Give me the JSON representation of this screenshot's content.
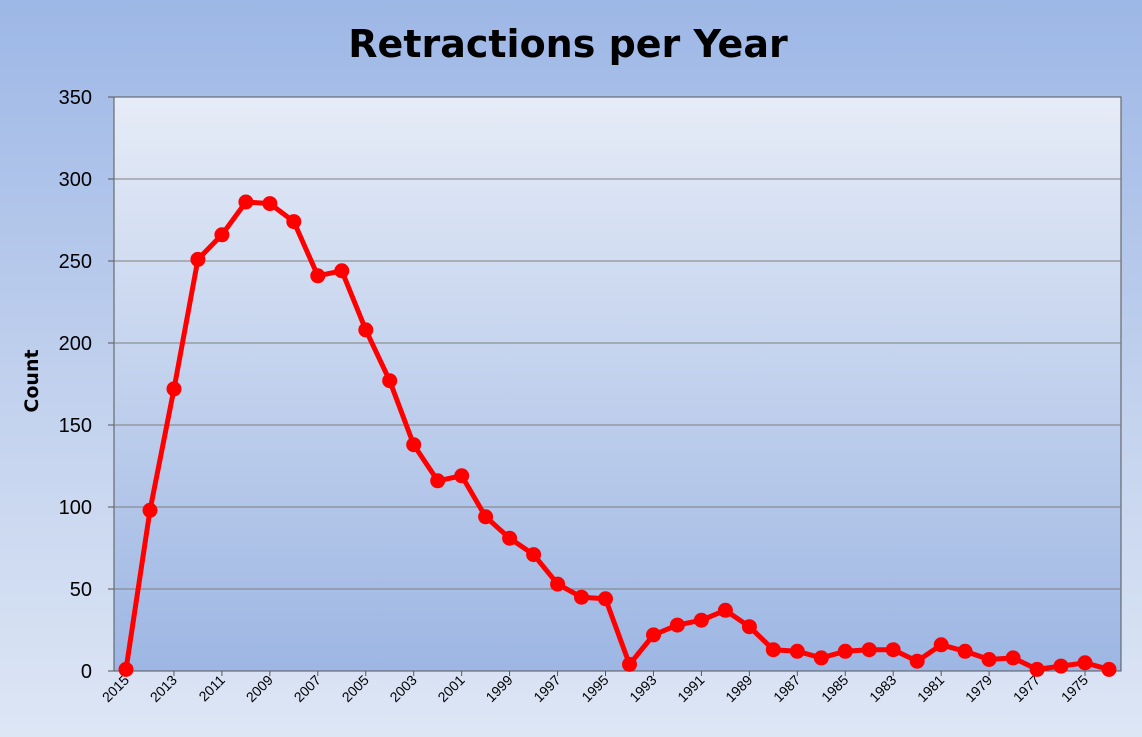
{
  "chart_data": {
    "type": "line",
    "title": "Retractions per Year",
    "xlabel": "",
    "ylabel": "Count",
    "ylim": [
      0,
      350
    ],
    "yticks": [
      0,
      50,
      100,
      150,
      200,
      250,
      300,
      350
    ],
    "grid": true,
    "legend": "none",
    "x": [
      2015,
      2014,
      2013,
      2012,
      2011,
      2010,
      2009,
      2008,
      2007,
      2006,
      2005,
      2004,
      2003,
      2002,
      2001,
      2000,
      1999,
      1998,
      1997,
      1996,
      1995,
      1994,
      1993,
      1992,
      1991,
      1990,
      1989,
      1988,
      1987,
      1986,
      1985,
      1984,
      1983,
      1982,
      1981,
      1980,
      1979,
      1978,
      1977,
      1976,
      1975,
      1974
    ],
    "xtick_labels": [
      "2015",
      "2013",
      "2011",
      "2009",
      "2007",
      "2005",
      "2003",
      "2001",
      "1999",
      "1997",
      "1995",
      "1993",
      "1991",
      "1989",
      "1987",
      "1985",
      "1983",
      "1981",
      "1979",
      "1977",
      "1975"
    ],
    "series": [
      {
        "values": [
          1,
          98,
          172,
          251,
          266,
          286,
          285,
          274,
          241,
          244,
          208,
          177,
          138,
          116,
          119,
          94,
          81,
          71,
          53,
          45,
          44,
          4,
          22,
          28,
          31,
          37,
          27,
          13,
          12,
          8,
          12,
          13,
          13,
          6,
          16,
          12,
          7,
          8,
          1,
          3,
          5,
          1
        ],
        "color": "#ff0000"
      }
    ]
  }
}
